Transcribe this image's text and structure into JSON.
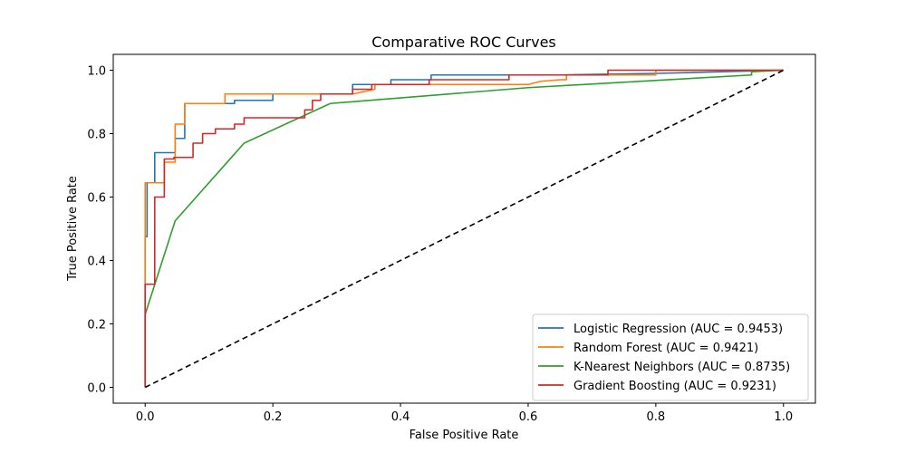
{
  "chart_data": {
    "type": "line",
    "title": "Comparative ROC Curves",
    "xlabel": "False Positive Rate",
    "ylabel": "True Positive Rate",
    "xlim": [
      -0.05,
      1.05
    ],
    "ylim": [
      -0.05,
      1.05
    ],
    "xticks": [
      0.0,
      0.2,
      0.4,
      0.6,
      0.8,
      1.0
    ],
    "yticks": [
      0.0,
      0.2,
      0.4,
      0.6,
      0.8,
      1.0
    ],
    "xtick_labels": [
      "0.0",
      "0.2",
      "0.4",
      "0.6",
      "0.8",
      "1.0"
    ],
    "ytick_labels": [
      "0.0",
      "0.2",
      "0.4",
      "0.6",
      "0.8",
      "1.0"
    ],
    "grid": false,
    "legend_position": "lower-right",
    "series": [
      {
        "name": "Logistic Regression (AUC = 0.9453)",
        "color": "#1f77b4",
        "x": [
          0,
          0,
          0.003,
          0.003,
          0.015,
          0.015,
          0.047,
          0.047,
          0.062,
          0.062,
          0.14,
          0.14,
          0.2,
          0.2,
          0.325,
          0.325,
          0.385,
          0.385,
          0.448,
          0.448,
          0.6,
          0.6,
          0.65,
          0.65,
          0.8,
          1.0
        ],
        "y": [
          0,
          0.475,
          0.475,
          0.645,
          0.645,
          0.74,
          0.74,
          0.785,
          0.785,
          0.895,
          0.895,
          0.905,
          0.905,
          0.925,
          0.925,
          0.955,
          0.955,
          0.97,
          0.97,
          0.985,
          0.985,
          0.985,
          0.985,
          0.985,
          0.99,
          1.0
        ]
      },
      {
        "name": "Random Forest (AUC = 0.9421)",
        "color": "#ff7f0e",
        "x": [
          0,
          0,
          0.03,
          0.03,
          0.047,
          0.047,
          0.062,
          0.062,
          0.125,
          0.125,
          0.325,
          0.36,
          0.36,
          0.6,
          0.62,
          0.65,
          0.66,
          0.66,
          0.8,
          0.8,
          1.0
        ],
        "y": [
          0,
          0.645,
          0.645,
          0.71,
          0.71,
          0.83,
          0.83,
          0.895,
          0.895,
          0.925,
          0.925,
          0.94,
          0.955,
          0.955,
          0.965,
          0.97,
          0.97,
          0.985,
          0.985,
          1.0,
          1.0
        ]
      },
      {
        "name": "K-Nearest Neighbors (AUC = 0.8735)",
        "color": "#2ca02c",
        "x": [
          0,
          0,
          0.047,
          0.155,
          0.29,
          0.6,
          0.95,
          0.95,
          1.0
        ],
        "y": [
          0,
          0.23,
          0.525,
          0.77,
          0.895,
          0.945,
          0.985,
          0.995,
          1.0
        ]
      },
      {
        "name": "Gradient Boosting (AUC = 0.9231)",
        "color": "#d62728",
        "x": [
          0,
          0,
          0.015,
          0.015,
          0.03,
          0.03,
          0.045,
          0.045,
          0.075,
          0.075,
          0.09,
          0.09,
          0.11,
          0.11,
          0.14,
          0.14,
          0.155,
          0.155,
          0.25,
          0.25,
          0.262,
          0.262,
          0.275,
          0.275,
          0.325,
          0.325,
          0.355,
          0.355,
          0.445,
          0.445,
          0.57,
          0.57,
          0.725,
          0.725,
          0.85,
          0.85,
          1.0
        ],
        "y": [
          0,
          0.325,
          0.325,
          0.6,
          0.6,
          0.72,
          0.72,
          0.725,
          0.725,
          0.77,
          0.77,
          0.8,
          0.8,
          0.815,
          0.815,
          0.83,
          0.83,
          0.85,
          0.85,
          0.875,
          0.875,
          0.905,
          0.905,
          0.925,
          0.925,
          0.94,
          0.94,
          0.955,
          0.955,
          0.97,
          0.97,
          0.985,
          0.985,
          1.0,
          1.0,
          1.0,
          1.0
        ]
      }
    ],
    "reference_line": {
      "style": "dashed",
      "color": "#000000",
      "x": [
        0,
        1
      ],
      "y": [
        0,
        1
      ]
    }
  }
}
